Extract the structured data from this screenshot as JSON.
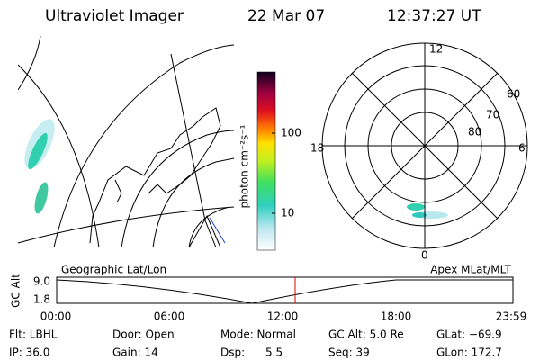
{
  "header": {
    "title": "Ultraviolet Imager",
    "date": "22 Mar 07",
    "time": "12:37:27 UT"
  },
  "colorbar": {
    "label": "photon cm⁻²s⁻¹",
    "ticks": [
      "100",
      "10"
    ]
  },
  "polar": {
    "mlt_labels": [
      "12",
      "18",
      "6",
      "0"
    ],
    "lat_labels": [
      "60",
      "70",
      "80"
    ]
  },
  "altitude_panel": {
    "left_title": "Geographic Lat/Lon",
    "right_title": "Apex MLat/MLT",
    "axis_label": "GC Alt",
    "y_labels": [
      "9.0",
      "1.8"
    ],
    "time_labels": [
      "00:00",
      "06:00",
      "12:00",
      "18:00",
      "23:59"
    ]
  },
  "info": [
    [
      "Flt: LBHL",
      "IP: 36.0"
    ],
    [
      "Door: Open",
      "Gain: 14"
    ],
    [
      "Mode: Normal",
      "Dsp:      5.5"
    ],
    [
      "GC Alt: 5.0 Re",
      "Seq: 39"
    ],
    [
      "GLat: −69.9",
      "GLon: 172.7"
    ]
  ]
}
